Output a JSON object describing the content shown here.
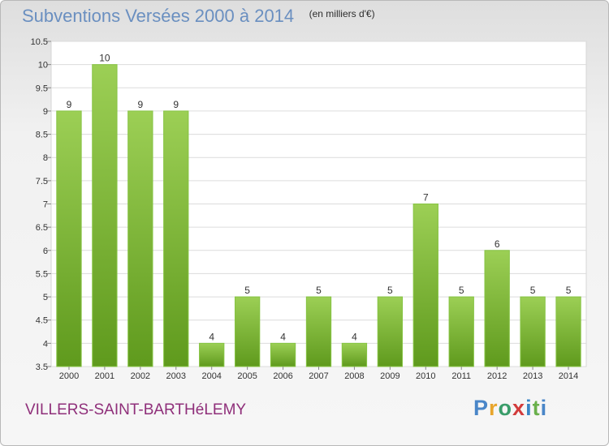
{
  "chart_data": {
    "type": "bar",
    "title": "Subventions Versées 2000 à 2014",
    "subtitle": "(en milliers d'€)",
    "categories": [
      "2000",
      "2001",
      "2002",
      "2003",
      "2004",
      "2005",
      "2006",
      "2007",
      "2008",
      "2009",
      "2010",
      "2011",
      "2012",
      "2013",
      "2014"
    ],
    "values": [
      9,
      10,
      9,
      9,
      4,
      5,
      4,
      5,
      4,
      5,
      7,
      5,
      6,
      5,
      5
    ],
    "ylim": [
      3.5,
      10.5
    ],
    "yticks": [
      3.5,
      4,
      4.5,
      5,
      5.5,
      6,
      6.5,
      7,
      7.5,
      8,
      8.5,
      9,
      9.5,
      10,
      10.5
    ],
    "grid": true,
    "bar_color": "#7cb938",
    "title_color": "#6a8fc0"
  },
  "footer": {
    "commune": "VILLERS-SAINT-BARTHéLEMY",
    "logo_letters": [
      "P",
      "r",
      "o",
      "x",
      "i",
      "t",
      "i"
    ]
  }
}
